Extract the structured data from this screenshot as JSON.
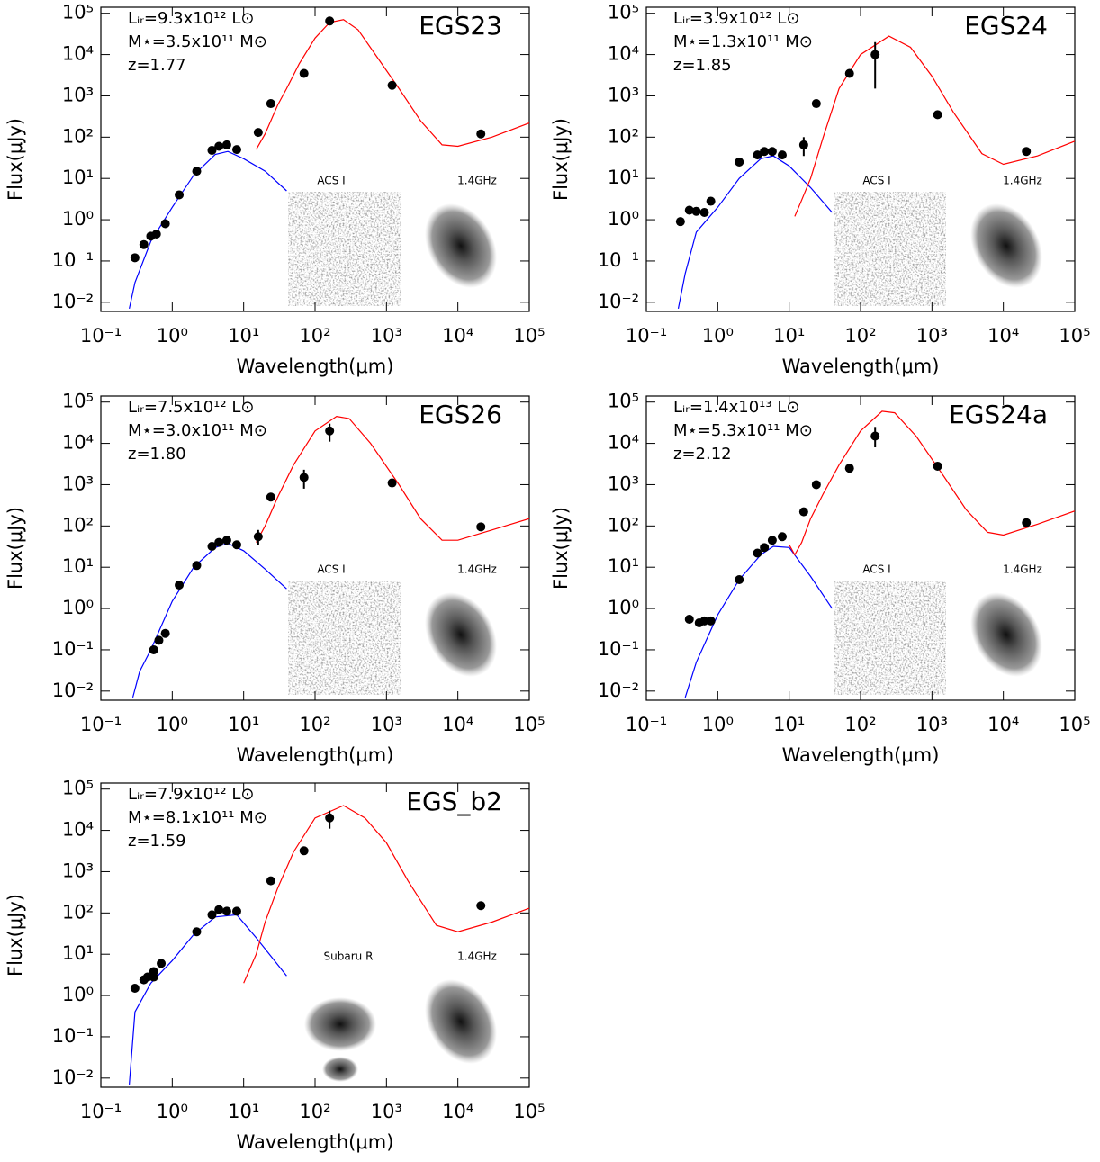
{
  "chart_data": [
    {
      "type": "scatter",
      "title": "EGS23",
      "annotations": [
        "Lᵢᵣ=9.3x10¹² L⊙",
        "M⋆=3.5x10¹¹ M⊙",
        "z=1.77"
      ],
      "xlabel": "Wavelength(μm)",
      "ylabel": "Flux(μJy)",
      "log_x": true,
      "log_y": true,
      "xlim": [
        0.1,
        100000
      ],
      "ylim": [
        0.006,
        140000
      ],
      "xticks": [
        {
          "value": 0.1,
          "label": "10⁻¹"
        },
        {
          "value": 1,
          "label": "10⁰"
        },
        {
          "value": 10,
          "label": "10¹"
        },
        {
          "value": 100,
          "label": "10²"
        },
        {
          "value": 1000,
          "label": "10³"
        },
        {
          "value": 10000,
          "label": "10⁴"
        },
        {
          "value": 100000,
          "label": "10⁵"
        }
      ],
      "yticks": [
        {
          "value": 0.01,
          "label": "10⁻²"
        },
        {
          "value": 0.1,
          "label": "10⁻¹"
        },
        {
          "value": 1,
          "label": "10⁰"
        },
        {
          "value": 10,
          "label": "10¹"
        },
        {
          "value": 100,
          "label": "10²"
        },
        {
          "value": 1000,
          "label": "10³"
        },
        {
          "value": 10000,
          "label": "10⁴"
        },
        {
          "value": 100000,
          "label": "10⁵"
        }
      ],
      "points": {
        "color": "#000000",
        "x": [
          0.3,
          0.4,
          0.5,
          0.6,
          0.8,
          1.25,
          2.2,
          3.6,
          4.5,
          5.8,
          8,
          16,
          24,
          70,
          160,
          1200,
          21000
        ],
        "values": [
          0.12,
          0.25,
          0.4,
          0.45,
          0.8,
          4,
          15,
          48,
          60,
          65,
          50,
          130,
          650,
          3500,
          65000,
          1800,
          120
        ],
        "ylow": [
          null,
          null,
          null,
          null,
          null,
          null,
          null,
          null,
          null,
          null,
          null,
          null,
          null,
          null,
          null,
          null,
          null
        ],
        "yhigh": [
          null,
          null,
          null,
          null,
          null,
          null,
          null,
          null,
          null,
          null,
          null,
          null,
          null,
          null,
          null,
          null,
          null
        ]
      },
      "stellar_model": {
        "color": "#0000ff",
        "x": [
          0.25,
          0.3,
          0.5,
          1,
          2,
          4,
          6,
          10,
          20,
          40
        ],
        "values": [
          0.007,
          0.03,
          0.3,
          2,
          12,
          38,
          45,
          30,
          15,
          5
        ]
      },
      "dust_model": {
        "color": "#ff0000",
        "x": [
          15,
          20,
          30,
          40,
          60,
          100,
          160,
          250,
          400,
          700,
          1500,
          3000,
          6000,
          10000,
          30000,
          100000
        ],
        "values": [
          50,
          120,
          600,
          1500,
          6000,
          25000,
          60000,
          70000,
          40000,
          10000,
          1500,
          250,
          65,
          60,
          100,
          220
        ]
      },
      "insets": [
        {
          "label": "ACS I"
        },
        {
          "label": "1.4GHz"
        }
      ]
    },
    {
      "type": "scatter",
      "title": "EGS24",
      "annotations": [
        "Lᵢᵣ=3.9x10¹² L⊙",
        "M⋆=1.3x10¹¹ M⊙",
        "z=1.85"
      ],
      "xlabel": "Wavelength(μm)",
      "ylabel": "Flux(μJy)",
      "log_x": true,
      "log_y": true,
      "xlim": [
        0.1,
        100000
      ],
      "ylim": [
        0.006,
        140000
      ],
      "xticks": [
        {
          "value": 0.1,
          "label": "10⁻¹"
        },
        {
          "value": 1,
          "label": "10⁰"
        },
        {
          "value": 10,
          "label": "10¹"
        },
        {
          "value": 100,
          "label": "10²"
        },
        {
          "value": 1000,
          "label": "10³"
        },
        {
          "value": 10000,
          "label": "10⁴"
        },
        {
          "value": 100000,
          "label": "10⁵"
        }
      ],
      "yticks": [
        {
          "value": 0.01,
          "label": "10⁻²"
        },
        {
          "value": 0.1,
          "label": "10⁻¹"
        },
        {
          "value": 1,
          "label": "10⁰"
        },
        {
          "value": 10,
          "label": "10¹"
        },
        {
          "value": 100,
          "label": "10²"
        },
        {
          "value": 1000,
          "label": "10³"
        },
        {
          "value": 10000,
          "label": "10⁴"
        },
        {
          "value": 100000,
          "label": "10⁵"
        }
      ],
      "points": {
        "color": "#000000",
        "x": [
          0.3,
          0.4,
          0.5,
          0.65,
          0.8,
          2,
          3.6,
          4.5,
          5.8,
          8,
          16,
          24,
          70,
          160,
          1200,
          21000
        ],
        "values": [
          0.9,
          1.7,
          1.6,
          1.5,
          2.8,
          25,
          37,
          45,
          45,
          37,
          65,
          650,
          3500,
          10000,
          350,
          45
        ],
        "ylow": [
          null,
          null,
          null,
          null,
          null,
          null,
          null,
          null,
          null,
          null,
          35,
          null,
          null,
          1500,
          null,
          null
        ],
        "yhigh": [
          null,
          null,
          null,
          null,
          null,
          null,
          null,
          null,
          null,
          null,
          100,
          null,
          null,
          20000,
          null,
          null
        ]
      },
      "stellar_model": {
        "color": "#0000ff",
        "x": [
          0.28,
          0.35,
          0.5,
          1,
          2,
          4,
          6,
          10,
          20,
          40
        ],
        "values": [
          0.007,
          0.05,
          0.5,
          2,
          10,
          30,
          35,
          20,
          6,
          1.5
        ]
      },
      "dust_model": {
        "color": "#ff0000",
        "x": [
          12,
          15,
          20,
          30,
          50,
          100,
          250,
          500,
          1000,
          2000,
          5000,
          10000,
          30000,
          100000
        ],
        "values": [
          1.2,
          3,
          10,
          100,
          1500,
          10000,
          28000,
          15000,
          3000,
          400,
          40,
          22,
          35,
          80
        ]
      },
      "insets": [
        {
          "label": "ACS I"
        },
        {
          "label": "1.4GHz"
        }
      ]
    },
    {
      "type": "scatter",
      "title": "EGS26",
      "annotations": [
        "Lᵢᵣ=7.5x10¹² L⊙",
        "M⋆=3.0x10¹¹ M⊙",
        "z=1.80"
      ],
      "xlabel": "Wavelength(μm)",
      "ylabel": "Flux(μJy)",
      "log_x": true,
      "log_y": true,
      "xlim": [
        0.1,
        100000
      ],
      "ylim": [
        0.006,
        140000
      ],
      "xticks": [
        {
          "value": 0.1,
          "label": "10⁻¹"
        },
        {
          "value": 1,
          "label": "10⁰"
        },
        {
          "value": 10,
          "label": "10¹"
        },
        {
          "value": 100,
          "label": "10²"
        },
        {
          "value": 1000,
          "label": "10³"
        },
        {
          "value": 10000,
          "label": "10⁴"
        },
        {
          "value": 100000,
          "label": "10⁵"
        }
      ],
      "yticks": [
        {
          "value": 0.01,
          "label": "10⁻²"
        },
        {
          "value": 0.1,
          "label": "10⁻¹"
        },
        {
          "value": 1,
          "label": "10⁰"
        },
        {
          "value": 10,
          "label": "10¹"
        },
        {
          "value": 100,
          "label": "10²"
        },
        {
          "value": 1000,
          "label": "10³"
        },
        {
          "value": 10000,
          "label": "10⁴"
        },
        {
          "value": 100000,
          "label": "10⁵"
        }
      ],
      "points": {
        "color": "#000000",
        "x": [
          0.55,
          0.65,
          0.8,
          1.25,
          2.2,
          3.6,
          4.5,
          5.8,
          8,
          16,
          24,
          70,
          160,
          1200,
          21000
        ],
        "values": [
          0.1,
          0.17,
          0.25,
          3.7,
          11,
          32,
          40,
          45,
          35,
          55,
          500,
          1500,
          20000,
          1100,
          95
        ],
        "ylow": [
          null,
          null,
          null,
          null,
          null,
          null,
          null,
          null,
          null,
          35,
          null,
          800,
          11000,
          null,
          null
        ],
        "yhigh": [
          null,
          null,
          null,
          null,
          null,
          null,
          null,
          null,
          null,
          80,
          null,
          2300,
          30000,
          null,
          null
        ]
      },
      "stellar_model": {
        "color": "#0000ff",
        "x": [
          0.28,
          0.35,
          0.5,
          1,
          2,
          4,
          6,
          10,
          20,
          40
        ],
        "values": [
          0.007,
          0.03,
          0.1,
          1.5,
          10,
          30,
          38,
          25,
          9,
          3
        ]
      },
      "dust_model": {
        "color": "#ff0000",
        "x": [
          15,
          20,
          30,
          50,
          100,
          200,
          300,
          600,
          1500,
          3000,
          6000,
          10000,
          30000,
          100000
        ],
        "values": [
          40,
          100,
          500,
          3000,
          20000,
          45000,
          40000,
          10000,
          1000,
          150,
          45,
          45,
          80,
          150
        ]
      },
      "insets": [
        {
          "label": "ACS I"
        },
        {
          "label": "1.4GHz"
        }
      ]
    },
    {
      "type": "scatter",
      "title": "EGS24a",
      "annotations": [
        "Lᵢᵣ=1.4x10¹³ L⊙",
        "M⋆=5.3x10¹¹ M⊙",
        "z=2.12"
      ],
      "xlabel": "Wavelength(μm)",
      "ylabel": "Flux(μJy)",
      "log_x": true,
      "log_y": true,
      "xlim": [
        0.1,
        100000
      ],
      "ylim": [
        0.006,
        140000
      ],
      "xticks": [
        {
          "value": 0.1,
          "label": "10⁻¹"
        },
        {
          "value": 1,
          "label": "10⁰"
        },
        {
          "value": 10,
          "label": "10¹"
        },
        {
          "value": 100,
          "label": "10²"
        },
        {
          "value": 1000,
          "label": "10³"
        },
        {
          "value": 10000,
          "label": "10⁴"
        },
        {
          "value": 100000,
          "label": "10⁵"
        }
      ],
      "yticks": [
        {
          "value": 0.01,
          "label": "10⁻²"
        },
        {
          "value": 0.1,
          "label": "10⁻¹"
        },
        {
          "value": 1,
          "label": "10⁰"
        },
        {
          "value": 10,
          "label": "10¹"
        },
        {
          "value": 100,
          "label": "10²"
        },
        {
          "value": 1000,
          "label": "10³"
        },
        {
          "value": 10000,
          "label": "10⁴"
        },
        {
          "value": 100000,
          "label": "10⁵"
        }
      ],
      "points": {
        "color": "#000000",
        "x": [
          0.4,
          0.55,
          0.65,
          0.8,
          2,
          3.6,
          4.5,
          5.8,
          8,
          16,
          24,
          70,
          160,
          1200,
          21000
        ],
        "values": [
          0.55,
          0.45,
          0.5,
          0.5,
          5,
          22,
          30,
          45,
          55,
          220,
          1000,
          2500,
          15000,
          2800,
          120
        ],
        "ylow": [
          null,
          null,
          null,
          null,
          null,
          null,
          null,
          null,
          null,
          null,
          null,
          null,
          8000,
          null,
          null
        ],
        "yhigh": [
          null,
          null,
          null,
          null,
          null,
          null,
          null,
          null,
          null,
          null,
          null,
          null,
          25000,
          null,
          null
        ]
      },
      "stellar_model": {
        "color": "#0000ff",
        "x": [
          0.35,
          0.5,
          1,
          2,
          4,
          6,
          10,
          20,
          40
        ],
        "values": [
          0.007,
          0.05,
          0.7,
          5,
          20,
          32,
          30,
          6,
          1
        ]
      },
      "dust_model": {
        "color": "#ff0000",
        "x": [
          10,
          12,
          15,
          20,
          30,
          50,
          100,
          200,
          300,
          600,
          1500,
          3000,
          6000,
          10000,
          30000,
          100000
        ],
        "values": [
          35,
          20,
          40,
          150,
          600,
          3000,
          20000,
          60000,
          55000,
          15000,
          1500,
          250,
          70,
          60,
          110,
          230
        ]
      },
      "insets": [
        {
          "label": "ACS I"
        },
        {
          "label": "1.4GHz"
        }
      ]
    },
    {
      "type": "scatter",
      "title": "EGS_b2",
      "annotations": [
        "Lᵢᵣ=7.9x10¹² L⊙",
        "M⋆=8.1x10¹¹ M⊙",
        "z=1.59"
      ],
      "xlabel": "Wavelength(μm)",
      "ylabel": "Flux(μJy)",
      "log_x": true,
      "log_y": true,
      "xlim": [
        0.1,
        100000
      ],
      "ylim": [
        0.006,
        140000
      ],
      "xticks": [
        {
          "value": 0.1,
          "label": "10⁻¹"
        },
        {
          "value": 1,
          "label": "10⁰"
        },
        {
          "value": 10,
          "label": "10¹"
        },
        {
          "value": 100,
          "label": "10²"
        },
        {
          "value": 1000,
          "label": "10³"
        },
        {
          "value": 10000,
          "label": "10⁴"
        },
        {
          "value": 100000,
          "label": "10⁵"
        }
      ],
      "yticks": [
        {
          "value": 0.01,
          "label": "10⁻²"
        },
        {
          "value": 0.1,
          "label": "10⁻¹"
        },
        {
          "value": 1,
          "label": "10⁰"
        },
        {
          "value": 10,
          "label": "10¹"
        },
        {
          "value": 100,
          "label": "10²"
        },
        {
          "value": 1000,
          "label": "10³"
        },
        {
          "value": 10000,
          "label": "10⁴"
        },
        {
          "value": 100000,
          "label": "10⁵"
        }
      ],
      "points": {
        "color": "#000000",
        "x": [
          0.3,
          0.4,
          0.45,
          0.55,
          0.55,
          0.7,
          2.2,
          3.6,
          4.5,
          5.8,
          8,
          24,
          70,
          160,
          21000
        ],
        "values": [
          1.5,
          2.4,
          2.8,
          3.8,
          2.8,
          6,
          35,
          90,
          120,
          110,
          110,
          600,
          3200,
          20000,
          150
        ],
        "ylow": [
          null,
          null,
          null,
          null,
          null,
          null,
          null,
          null,
          null,
          null,
          null,
          null,
          null,
          11000,
          null
        ],
        "yhigh": [
          null,
          null,
          null,
          null,
          null,
          null,
          null,
          null,
          null,
          null,
          null,
          null,
          null,
          30000,
          null
        ]
      },
      "stellar_model": {
        "color": "#0000ff",
        "x": [
          0.25,
          0.3,
          0.5,
          1,
          2,
          4,
          8,
          15,
          40
        ],
        "values": [
          0.007,
          0.4,
          2,
          7,
          30,
          80,
          90,
          25,
          3
        ]
      },
      "dust_model": {
        "color": "#ff0000",
        "x": [
          10,
          15,
          20,
          30,
          50,
          100,
          250,
          500,
          1000,
          2000,
          5000,
          10000,
          30000,
          100000
        ],
        "values": [
          2,
          10,
          60,
          400,
          3000,
          20000,
          40000,
          20000,
          5000,
          600,
          50,
          35,
          60,
          130
        ]
      },
      "insets": [
        {
          "label": "Subaru R"
        },
        {
          "label": "1.4GHz"
        }
      ]
    }
  ]
}
